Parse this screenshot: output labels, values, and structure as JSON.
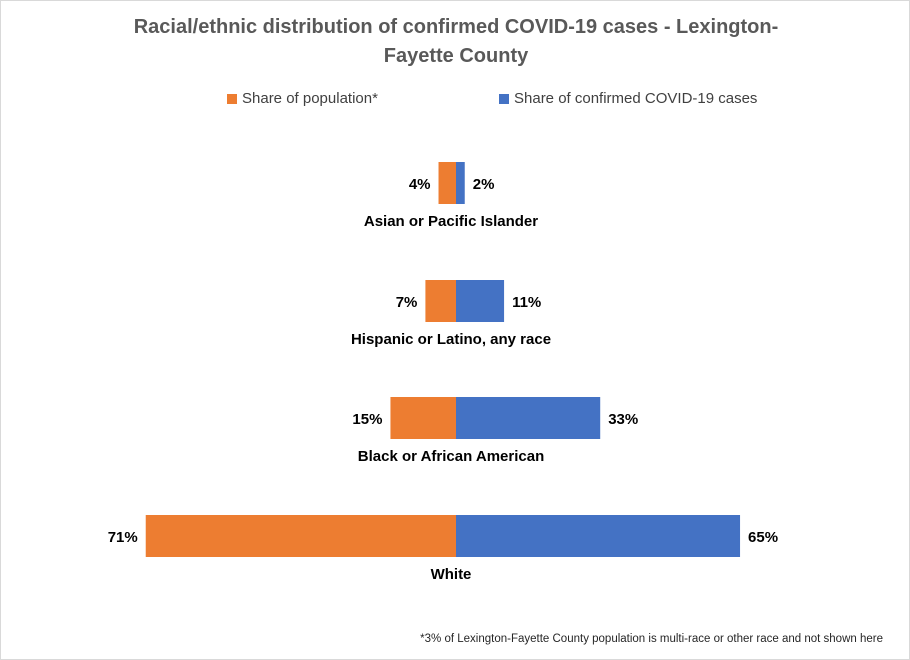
{
  "title_lines": [
    "Racial/ethnic distribution of confirmed COVID-19 cases -  Lexington-",
    "Fayette County"
  ],
  "footnote": "*3% of Lexington-Fayette County population is multi-race or other race and not shown here",
  "colors": {
    "population": "#ed7d31",
    "cases": "#4472c4"
  },
  "chart_data": {
    "type": "bar",
    "orientation": "horizontal-butterfly",
    "categories": [
      "Asian or Pacific Islander",
      "Hispanic or Latino, any race",
      "Black or African American",
      "White"
    ],
    "series": [
      {
        "name": "Share of population*",
        "values": [
          4,
          7,
          15,
          71
        ],
        "labels": [
          "4%",
          "7%",
          "15%",
          "71%"
        ],
        "direction": "left"
      },
      {
        "name": "Share of confirmed COVID-19 cases",
        "values": [
          2,
          11,
          33,
          65
        ],
        "labels": [
          "2%",
          "11%",
          "33%",
          "65%"
        ],
        "direction": "right"
      }
    ],
    "unit": "%",
    "legend_position": "top",
    "grid": false
  }
}
